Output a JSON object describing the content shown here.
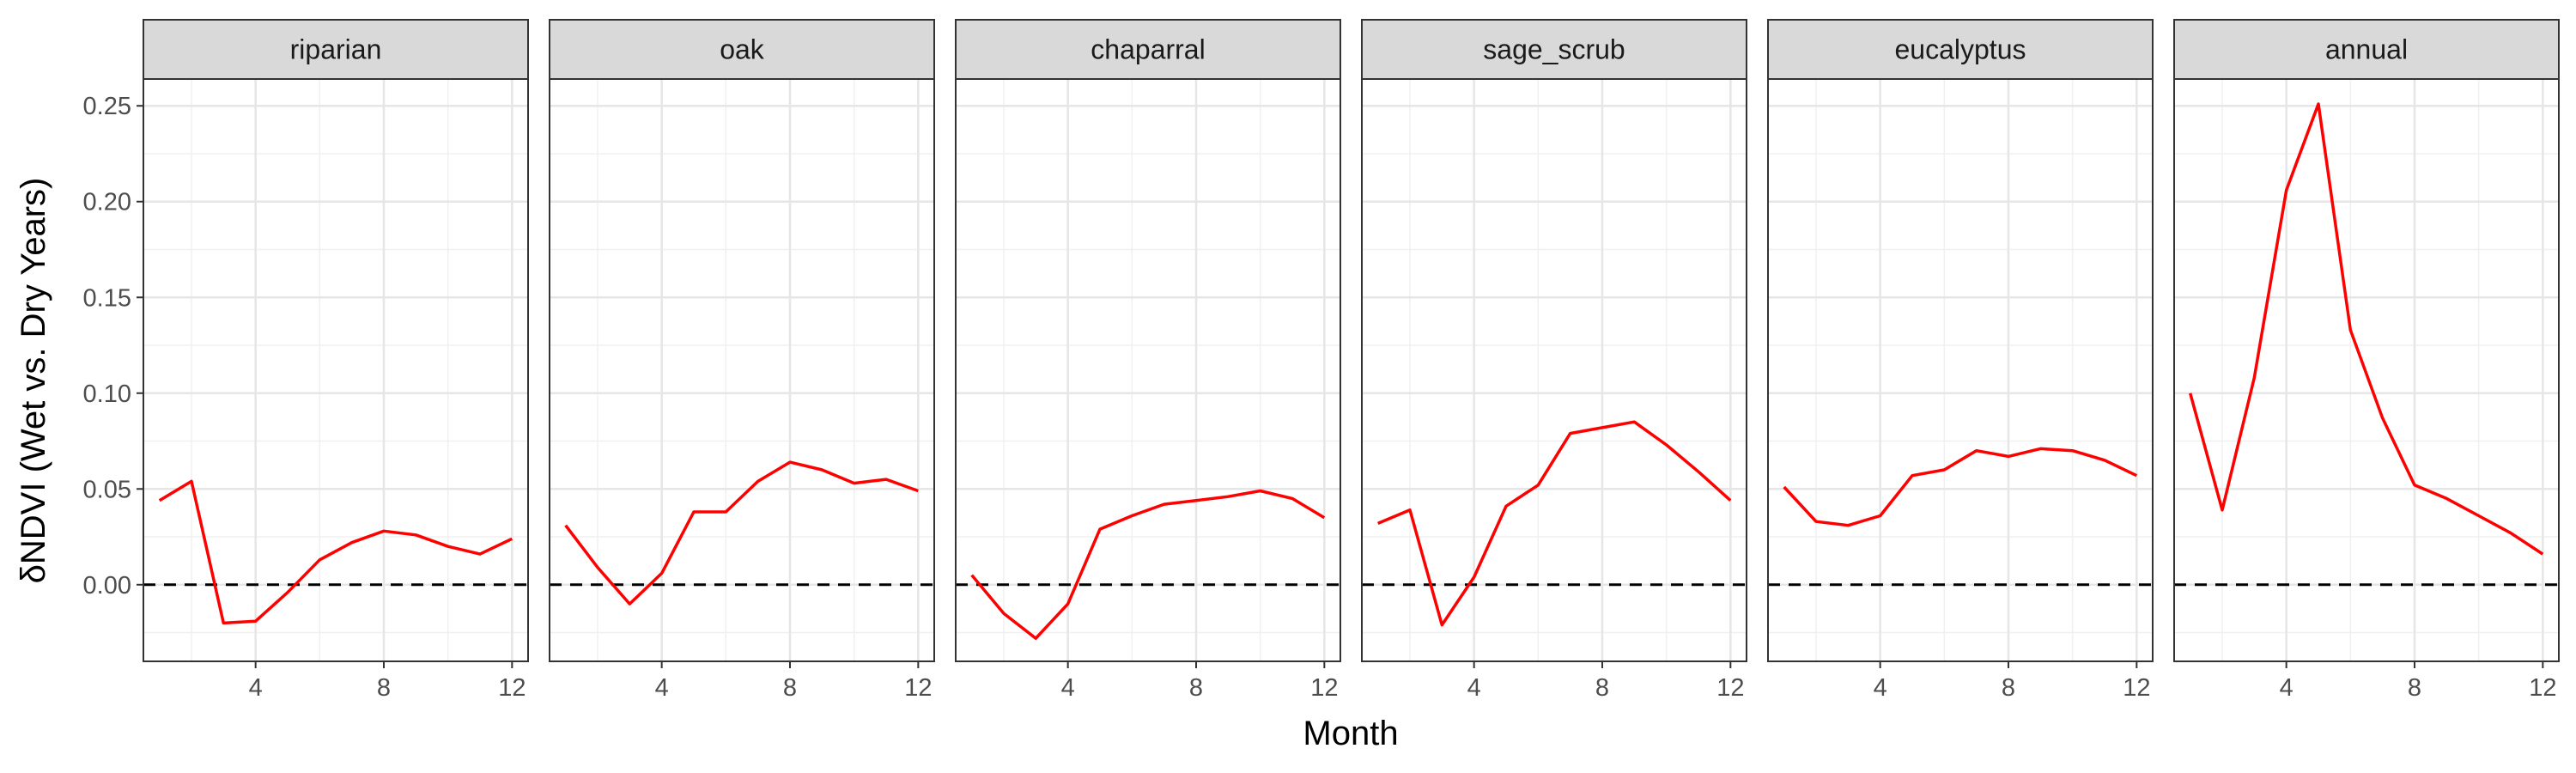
{
  "chart_data": {
    "type": "line",
    "xlabel": "Month",
    "ylabel": "δNDVI (Wet vs. Dry Years)",
    "xlim": [
      0.5,
      12.5
    ],
    "ylim": [
      -0.04,
      0.264
    ],
    "x_ticks": [
      4,
      8,
      12
    ],
    "x_tick_labels": [
      "4",
      "8",
      "12"
    ],
    "y_ticks": [
      0.0,
      0.05,
      0.1,
      0.15,
      0.2,
      0.25
    ],
    "y_tick_labels": [
      "0.00",
      "0.05",
      "0.10",
      "0.15",
      "0.20",
      "0.25"
    ],
    "reference_line": {
      "y": 0,
      "style": "dashed",
      "color": "#000000"
    },
    "line_color": "#ff0000",
    "grid": true,
    "x": [
      1,
      2,
      3,
      4,
      5,
      6,
      7,
      8,
      9,
      10,
      11,
      12
    ],
    "panels": [
      {
        "label": "riparian",
        "values": [
          0.044,
          0.054,
          -0.02,
          -0.019,
          -0.004,
          0.013,
          0.022,
          0.028,
          0.026,
          0.02,
          0.016,
          0.024
        ]
      },
      {
        "label": "oak",
        "values": [
          0.031,
          0.009,
          -0.01,
          0.006,
          0.038,
          0.038,
          0.054,
          0.064,
          0.06,
          0.053,
          0.055,
          0.049
        ]
      },
      {
        "label": "chaparral",
        "values": [
          0.005,
          -0.015,
          -0.028,
          -0.01,
          0.029,
          0.036,
          0.042,
          0.044,
          0.046,
          0.049,
          0.045,
          0.035
        ]
      },
      {
        "label": "sage_scrub",
        "values": [
          0.032,
          0.039,
          -0.021,
          0.004,
          0.041,
          0.052,
          0.079,
          0.082,
          0.085,
          0.073,
          0.059,
          0.044
        ]
      },
      {
        "label": "eucalyptus",
        "values": [
          0.051,
          0.033,
          0.031,
          0.036,
          0.057,
          0.06,
          0.07,
          0.067,
          0.071,
          0.07,
          0.065,
          0.057
        ]
      },
      {
        "label": "annual",
        "values": [
          0.1,
          0.039,
          0.108,
          0.206,
          0.251,
          0.133,
          0.087,
          0.052,
          0.045,
          0.036,
          0.027,
          0.016
        ]
      }
    ]
  }
}
